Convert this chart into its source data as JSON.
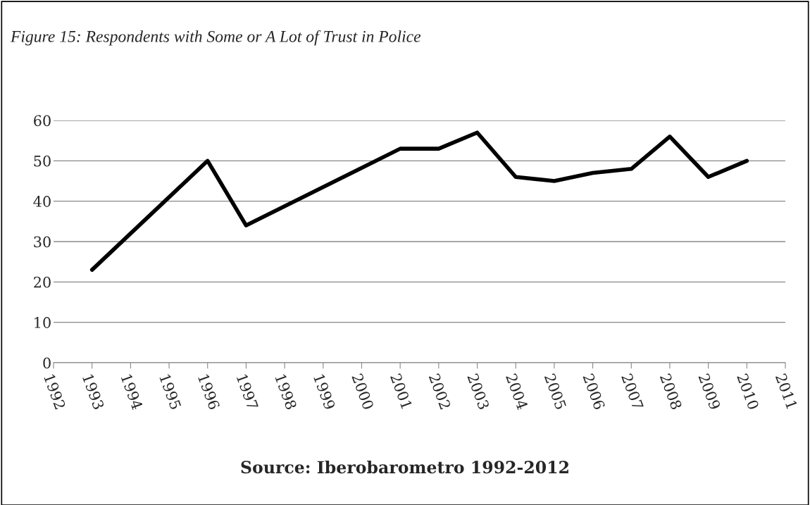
{
  "chart_data": {
    "type": "line",
    "title": "Figure 15: Respondents with Some or A Lot of Trust in Police",
    "x": [
      1993,
      1996,
      1997,
      2001,
      2002,
      2003,
      2004,
      2005,
      2006,
      2007,
      2008,
      2009,
      2010
    ],
    "series": [
      {
        "color": "#000000",
        "values": [
          23,
          50,
          34,
          53,
          53,
          57,
          46,
          45,
          47,
          48,
          56,
          46,
          50
        ]
      }
    ],
    "xlim": [
      1992,
      2011
    ],
    "xticks": [
      1992,
      1993,
      1994,
      1995,
      1996,
      1997,
      1998,
      1999,
      2000,
      2001,
      2002,
      2003,
      2004,
      2005,
      2006,
      2007,
      2008,
      2009,
      2010,
      2011
    ],
    "ylim": [
      0,
      60
    ],
    "yticks": [
      0,
      10,
      20,
      30,
      40,
      50,
      60
    ],
    "grid": "y",
    "legend": false,
    "marker": "none",
    "line_style": "solid",
    "annotations": [
      "Source: Iberobarometro 1992-2012"
    ]
  }
}
